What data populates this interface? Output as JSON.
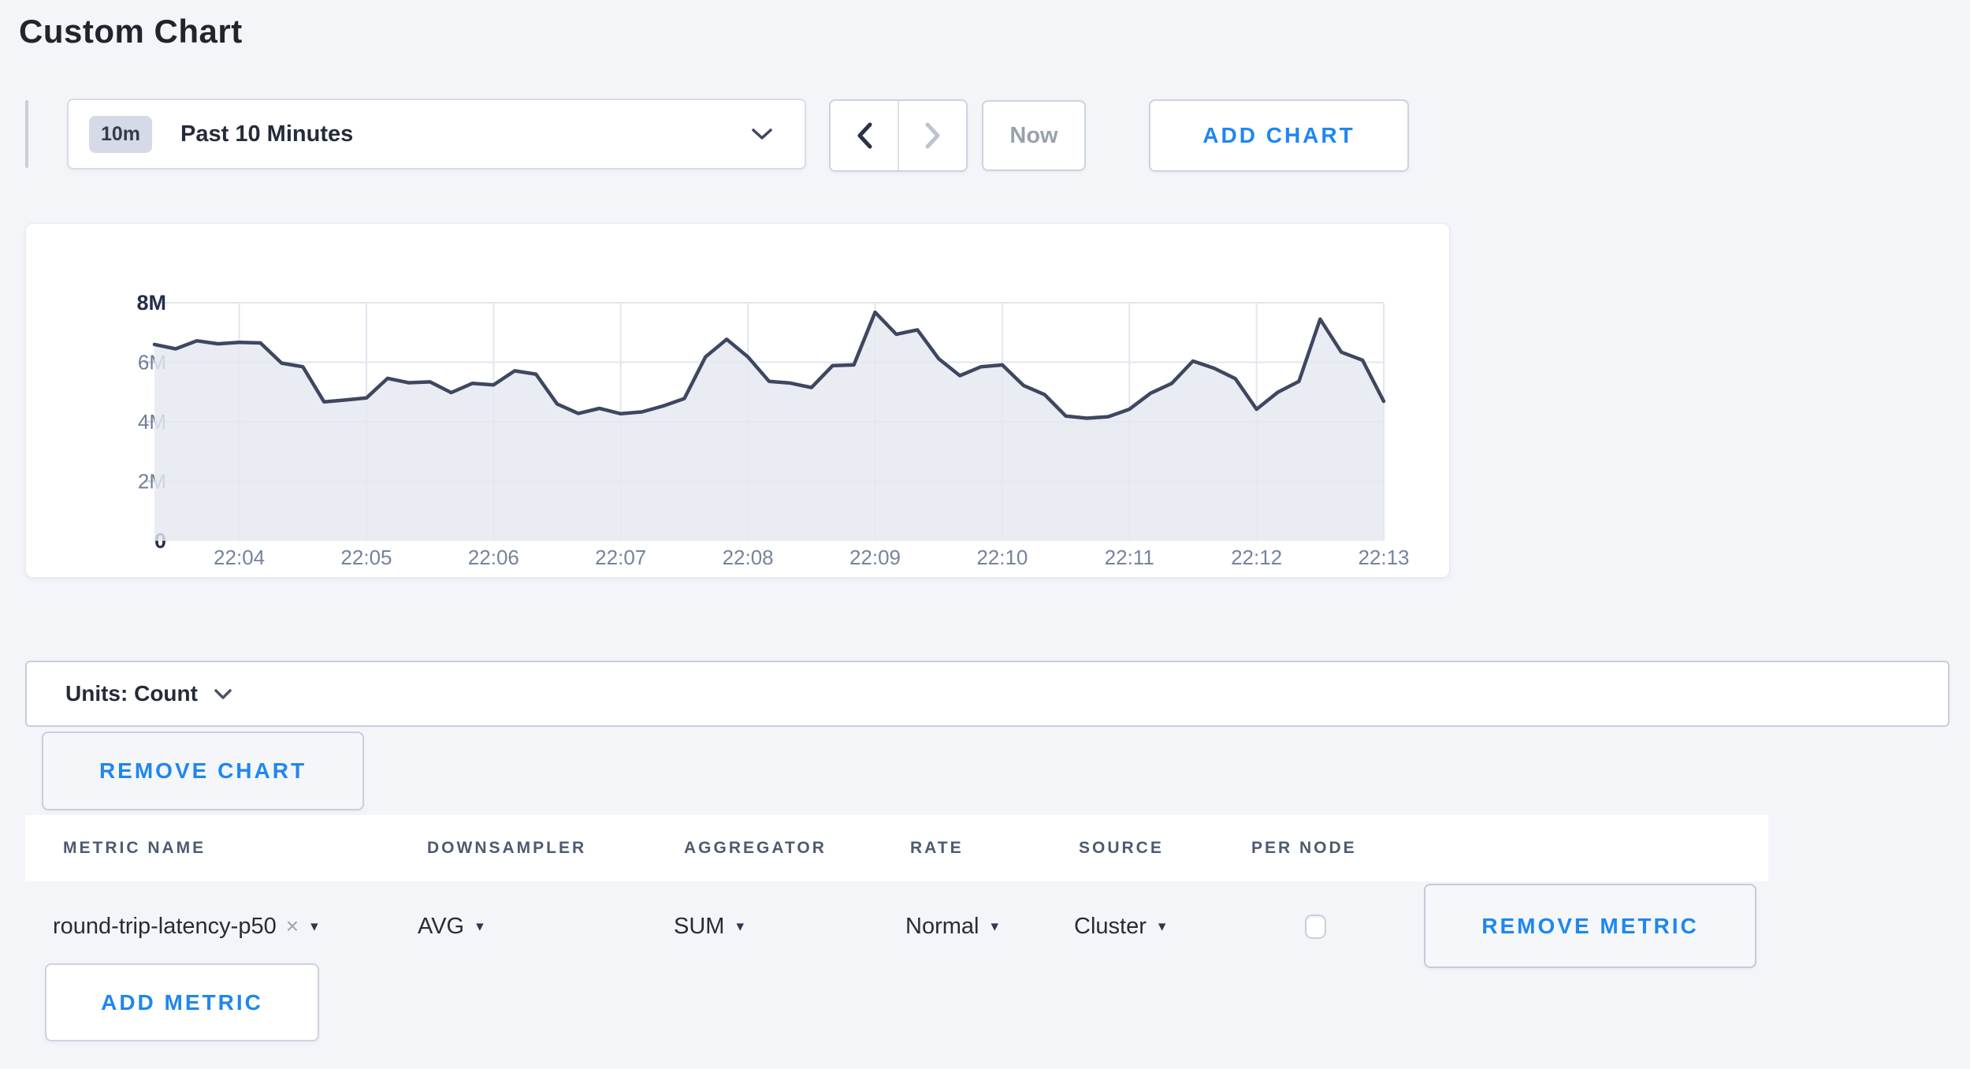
{
  "page": {
    "title": "Custom Chart"
  },
  "colors": {
    "page_bg": "#f4f5f9",
    "accent_blue": "#1e87f0",
    "dark_text": "#242b3a",
    "disabled_text": "#99a1ad",
    "border": "#ccd3e0",
    "badge_bg": "#d6dae7"
  },
  "toolbar": {
    "time_range": {
      "badge": "10m",
      "label": "Past 10 Minutes"
    },
    "now_button": "Now",
    "add_chart_button": "ADD CHART"
  },
  "chart_data": {
    "type": "area",
    "title": "",
    "xlabel": "",
    "ylabel": "",
    "series": [
      {
        "name": "round-trip-latency-p50",
        "values_millions": [
          6.6,
          6.45,
          6.72,
          6.62,
          6.67,
          6.65,
          5.97,
          5.85,
          4.67,
          4.73,
          4.8,
          5.46,
          5.31,
          5.34,
          4.98,
          5.29,
          5.24,
          5.71,
          5.6,
          4.6,
          4.28,
          4.45,
          4.27,
          4.33,
          4.53,
          4.78,
          6.18,
          6.77,
          6.18,
          5.36,
          5.3,
          5.15,
          5.89,
          5.91,
          7.68,
          6.94,
          7.09,
          6.12,
          5.55,
          5.85,
          5.91,
          5.22,
          4.91,
          4.19,
          4.12,
          4.17,
          4.42,
          4.96,
          5.29,
          6.04,
          5.8,
          5.45,
          4.42,
          4.99,
          5.36,
          7.45,
          6.34,
          6.07,
          4.69
        ]
      }
    ],
    "start_time": "22:03:20",
    "interval_seconds": 10,
    "x_ticks": [
      "22:04",
      "22:05",
      "22:06",
      "22:07",
      "22:08",
      "22:09",
      "22:10",
      "22:11",
      "22:12",
      "22:13"
    ],
    "y_ticks": [
      {
        "label": "0",
        "value": 0,
        "bold": true
      },
      {
        "label": "2M",
        "value": 2,
        "bold": false
      },
      {
        "label": "4M",
        "value": 4,
        "bold": false
      },
      {
        "label": "6M",
        "value": 6,
        "bold": false
      },
      {
        "label": "8M",
        "value": 8,
        "bold": true
      }
    ],
    "ylim_millions": [
      0,
      8
    ],
    "grid": true,
    "legend_position": "none",
    "line_color": "#3e4760",
    "fill_color": "rgba(229,232,240,0.82)",
    "grid_color": "#e2e6ef",
    "tick_stub_color": "#d7dce6",
    "tick_label_color": "#76839b",
    "y_label_color": "#6f7c99",
    "y_label_bold_color": "#252f4a"
  },
  "units_bar": {
    "label": "Units: Count"
  },
  "chart_actions": {
    "remove_chart_button": "REMOVE CHART"
  },
  "metrics_table": {
    "columns": [
      "METRIC NAME",
      "DOWNSAMPLER",
      "AGGREGATOR",
      "RATE",
      "SOURCE",
      "PER NODE"
    ],
    "rows": [
      {
        "metric_name": "round-trip-latency-p50",
        "downsampler": "AVG",
        "aggregator": "SUM",
        "rate": "Normal",
        "source": "Cluster",
        "per_node_checked": false,
        "remove_button": "REMOVE METRIC"
      }
    ],
    "add_metric_button": "ADD METRIC"
  },
  "icons": {
    "close": "×",
    "caret_down": "▾"
  }
}
